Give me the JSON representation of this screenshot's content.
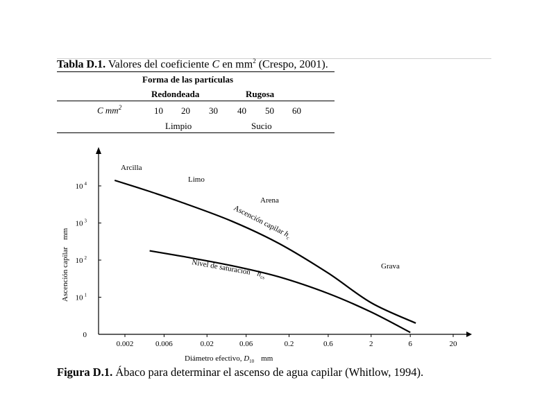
{
  "table": {
    "caption_label": "Tabla D.1.",
    "caption_text": "Valores del coeficiente",
    "caption_c": "C",
    "caption_unit": "en mm",
    "caption_sup": "2",
    "caption_ref": "(Crespo, 2001).",
    "header_group": "Forma de las partículas",
    "col_rounded": "Redondeada",
    "col_rough": "Rugosa",
    "row_label": "C mm",
    "row_label_sup": "2",
    "values": [
      "10",
      "20",
      "30",
      "40",
      "50",
      "60"
    ],
    "cond_clean": "Limpio",
    "cond_dirty": "Sucio"
  },
  "figure": {
    "caption_label": "Figura D.1.",
    "caption_text": "Ábaco para determinar el ascenso de agua capilar (Whitlow, 1994)."
  },
  "chart_data": {
    "type": "line",
    "title": "",
    "xlabel_main": "Diámetro efectivo,",
    "xlabel_sym": "D",
    "xlabel_sub": "10",
    "xlabel_unit": "mm",
    "ylabel": "Ascención capilar",
    "yunit": "mm",
    "x_scale": "log",
    "x_ticks": [
      "0.002",
      "0.006",
      "0.02",
      "0.06",
      "0.2",
      "0.6",
      "2",
      "6",
      "20"
    ],
    "y_ticks": [
      {
        "label": "0",
        "sup": ""
      },
      {
        "label": "10",
        "sup": "1"
      },
      {
        "label": "10",
        "sup": "2"
      },
      {
        "label": "10",
        "sup": "3"
      },
      {
        "label": "10",
        "sup": "4"
      }
    ],
    "soil_labels": [
      "Arcilla",
      "Limo",
      "Arena",
      "Grava"
    ],
    "series": [
      {
        "name": "Ascención capilar",
        "name_sym": "h",
        "name_sub": "c",
        "x": [
          0.0015,
          0.004,
          0.01,
          0.04,
          0.15,
          0.6,
          2.0,
          7.0
        ],
        "y": [
          4.15,
          3.85,
          3.55,
          3.05,
          2.45,
          1.65,
          0.85,
          0.3
        ]
      },
      {
        "name": "Nivel de saturación",
        "name_sym": "h",
        "name_sub": "cs",
        "x": [
          0.004,
          0.01,
          0.04,
          0.15,
          0.6,
          2.0,
          6.0
        ],
        "y": [
          2.25,
          2.1,
          1.85,
          1.55,
          1.1,
          0.6,
          0.05
        ]
      }
    ]
  }
}
